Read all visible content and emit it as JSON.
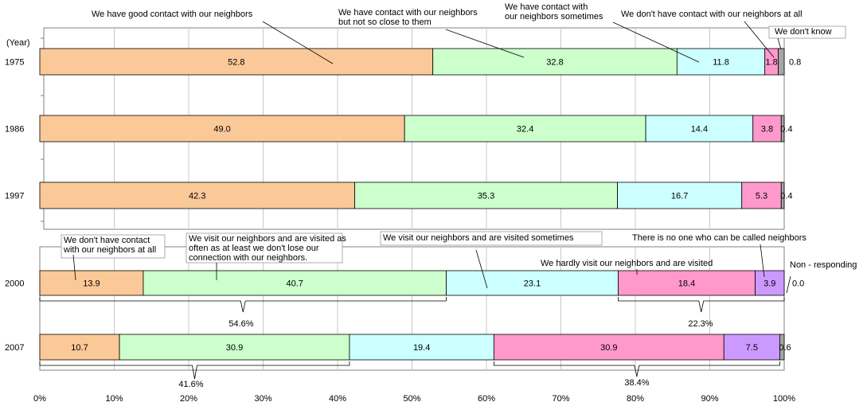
{
  "chart_data": [
    {
      "type": "bar",
      "stacked": true,
      "orientation": "horizontal",
      "y_unit_label": "(Year)",
      "categories": [
        "1975",
        "1986",
        "1997"
      ],
      "xlim": [
        0,
        100
      ],
      "series": [
        {
          "name": "We have good contact with our neighbors",
          "values": [
            52.8,
            49.0,
            42.3
          ],
          "color": "#FBC898"
        },
        {
          "name": "We have contact with our neighbors but not so close to them",
          "values": [
            32.8,
            32.4,
            35.3
          ],
          "color": "#CCFFCC"
        },
        {
          "name": "We have contact with our neighbors sometimes",
          "values": [
            11.8,
            14.4,
            16.7
          ],
          "color": "#CCFFFF"
        },
        {
          "name": "We don't have contact with our neighbors at all",
          "values": [
            1.8,
            3.8,
            5.3
          ],
          "color": "#FF99CC"
        },
        {
          "name": "We don't know",
          "values": [
            0.8,
            0.4,
            0.4
          ],
          "color": "#A6A6A6"
        }
      ],
      "value_labels": [
        [
          "52.8",
          "32.8",
          "11.8",
          "1.8",
          "0.8"
        ],
        [
          "49.0",
          "32.4",
          "14.4",
          "3.8",
          "0.4"
        ],
        [
          "42.3",
          "35.3",
          "16.7",
          "5.3",
          "0.4"
        ]
      ]
    },
    {
      "type": "bar",
      "stacked": true,
      "orientation": "horizontal",
      "categories": [
        "2000",
        "2007"
      ],
      "xlim": [
        0,
        100
      ],
      "x_ticks": [
        "0%",
        "10%",
        "20%",
        "30%",
        "40%",
        "50%",
        "60%",
        "70%",
        "80%",
        "90%",
        "100%"
      ],
      "series": [
        {
          "name": "We don't have contact with our neighbors at all",
          "values": [
            13.9,
            10.7
          ],
          "color": "#FBC898"
        },
        {
          "name": "We visit our neighbors and are visited as often as at least we don't lose our connection with our neighbors.",
          "values": [
            40.7,
            30.9
          ],
          "color": "#CCFFCC"
        },
        {
          "name": "We visit our neighbors and are visited sometimes",
          "values": [
            23.1,
            19.4
          ],
          "color": "#CCFFFF"
        },
        {
          "name": "We hardly visit our neighbors and are visited",
          "values": [
            18.4,
            30.9
          ],
          "color": "#FF99CC"
        },
        {
          "name": "There is no one who can be called neighbors",
          "values": [
            3.9,
            7.5
          ],
          "color": "#CC99FF"
        },
        {
          "name": "Non - responding",
          "values": [
            0.0,
            0.6
          ],
          "color": "#A6A6A6"
        }
      ],
      "value_labels": [
        [
          "13.9",
          "40.7",
          "23.1",
          "18.4",
          "3.9",
          "0.0"
        ],
        [
          "10.7",
          "30.9",
          "19.4",
          "30.9",
          "7.5",
          "0.6"
        ]
      ],
      "group_totals": [
        {
          "row": "2000",
          "label": "54.6%"
        },
        {
          "row": "2000",
          "label": "22.3%"
        },
        {
          "row": "2007",
          "label": "41.6%"
        },
        {
          "row": "2007",
          "label": "38.4%"
        }
      ]
    }
  ]
}
